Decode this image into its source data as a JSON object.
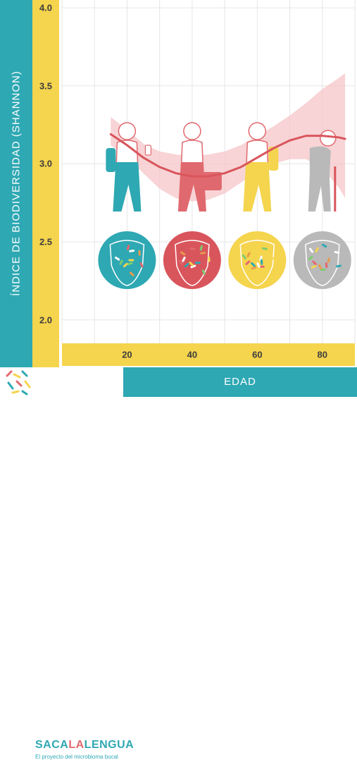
{
  "chart_data": {
    "type": "line",
    "title": "",
    "xlabel": "EDAD",
    "ylabel": "ÍNDICE DE BIODIVERSIDAD (SHANNON)",
    "x_ticks": [
      20,
      40,
      60,
      80
    ],
    "y_ticks": [
      "2.0",
      "2.5",
      "3.0",
      "3.5",
      "4.0"
    ],
    "xlim": [
      0,
      90
    ],
    "ylim": [
      1.85,
      4.05
    ],
    "grid": true,
    "series": [
      {
        "x": [
          15,
          20,
          25,
          30,
          35,
          40,
          45,
          50,
          55,
          60,
          65,
          70,
          75,
          80,
          85,
          87
        ],
        "y": [
          3.19,
          3.12,
          3.04,
          2.98,
          2.94,
          2.92,
          2.92,
          2.94,
          2.98,
          3.04,
          3.1,
          3.15,
          3.18,
          3.18,
          3.17,
          3.16
        ],
        "lower": [
          3.12,
          3.04,
          2.94,
          2.84,
          2.78,
          2.76,
          2.77,
          2.81,
          2.88,
          2.95,
          3.0,
          3.03,
          3.03,
          2.97,
          2.85,
          2.78
        ],
        "upper": [
          3.3,
          3.22,
          3.13,
          3.08,
          3.06,
          3.05,
          3.06,
          3.08,
          3.12,
          3.18,
          3.24,
          3.31,
          3.39,
          3.48,
          3.55,
          3.58
        ]
      }
    ],
    "colors": {
      "line": "#d9555c",
      "band": "#f6c5c8",
      "grid": "#e6e6e6",
      "teal": "#2ea8b3",
      "coral": "#e0696f",
      "yellow": "#f5d44e",
      "gray": "#b9b9b9"
    }
  },
  "figures": [
    {
      "age": 20,
      "color": "#2ea8b3",
      "icon": "walking-person-phone-icon"
    },
    {
      "age": 40,
      "color": "#e0696f",
      "icon": "walking-person-briefcase-icon"
    },
    {
      "age": 60,
      "color": "#f5d44e",
      "icon": "walking-person-backpack-icon"
    },
    {
      "age": 80,
      "color": "#b9b9b9",
      "icon": "elderly-person-cane-icon"
    }
  ],
  "tongues": [
    {
      "age": 20,
      "color": "#2ea8b3",
      "icon": "tongue-microbiome-icon"
    },
    {
      "age": 40,
      "color": "#d9555c",
      "icon": "tongue-microbiome-icon"
    },
    {
      "age": 60,
      "color": "#f5d44e",
      "icon": "tongue-microbiome-icon"
    },
    {
      "age": 80,
      "color": "#b9b9b9",
      "icon": "tongue-microbiome-icon"
    }
  ],
  "logo": {
    "parts": [
      {
        "text": "SACA",
        "color": "#2ea8b3"
      },
      {
        "text": "LA",
        "color": "#e0696f"
      },
      {
        "text": "LENGUA",
        "color": "#2ea8b3"
      }
    ],
    "tagline": "El proyecto del microbioma bucal"
  }
}
